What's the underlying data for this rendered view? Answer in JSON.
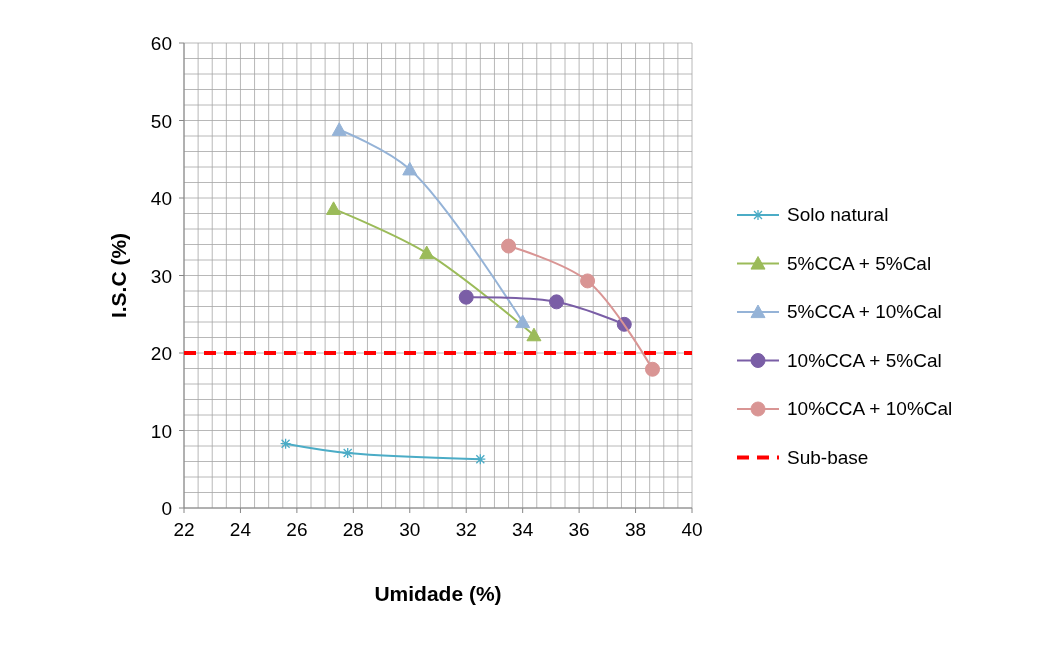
{
  "chart_data": {
    "type": "line",
    "xlabel": "Umidade (%)",
    "ylabel": "I.S.C (%)",
    "xlim": [
      22,
      40
    ],
    "ylim": [
      0,
      60
    ],
    "xticks": [
      22,
      {
        "value": 22.5,
        "label": null
      },
      {
        "value": 23,
        "label": null
      },
      {
        "value": 23.5,
        "label": null
      },
      24,
      {
        "value": 24.5,
        "label": null
      },
      {
        "value": 25,
        "label": null
      },
      {
        "value": 25.5,
        "label": null
      },
      26,
      {
        "value": 26.5,
        "label": null
      },
      {
        "value": 27,
        "label": null
      },
      {
        "value": 27.5,
        "label": null
      },
      28,
      {
        "value": 28.5,
        "label": null
      },
      {
        "value": 29,
        "label": null
      },
      {
        "value": 29.5,
        "label": null
      },
      30,
      {
        "value": 30.5,
        "label": null
      },
      {
        "value": 31,
        "label": null
      },
      {
        "value": 31.5,
        "label": null
      },
      32,
      {
        "value": 32.5,
        "label": null
      },
      {
        "value": 33,
        "label": null
      },
      {
        "value": 33.5,
        "label": null
      },
      34,
      {
        "value": 34.5,
        "label": null
      },
      {
        "value": 35,
        "label": null
      },
      {
        "value": 35.5,
        "label": null
      },
      36,
      {
        "value": 36.5,
        "label": null
      },
      {
        "value": 37,
        "label": null
      },
      {
        "value": 37.5,
        "label": null
      },
      38,
      {
        "value": 38.5,
        "label": null
      },
      {
        "value": 39,
        "label": null
      },
      {
        "value": 39.5,
        "label": null
      },
      40
    ],
    "yticks": [
      0,
      {
        "value": 2,
        "label": null
      },
      {
        "value": 4,
        "label": null
      },
      {
        "value": 6,
        "label": null
      },
      {
        "value": 8,
        "label": null
      },
      10,
      {
        "value": 12,
        "label": null
      },
      {
        "value": 14,
        "label": null
      },
      {
        "value": 16,
        "label": null
      },
      {
        "value": 18,
        "label": null
      },
      20,
      {
        "value": 22,
        "label": null
      },
      {
        "value": 24,
        "label": null
      },
      {
        "value": 26,
        "label": null
      },
      {
        "value": 28,
        "label": null
      },
      30,
      {
        "value": 32,
        "label": null
      },
      {
        "value": 34,
        "label": null
      },
      {
        "value": 36,
        "label": null
      },
      {
        "value": 38,
        "label": null
      },
      40,
      {
        "value": 42,
        "label": null
      },
      {
        "value": 44,
        "label": null
      },
      {
        "value": 46,
        "label": null
      },
      {
        "value": 48,
        "label": null
      },
      50,
      {
        "value": 52,
        "label": null
      },
      {
        "value": 54,
        "label": null
      },
      {
        "value": 56,
        "label": null
      },
      {
        "value": 58,
        "label": null
      },
      60
    ],
    "grid": true,
    "legend": "right",
    "series": [
      {
        "name": "Solo natural",
        "color": "#4bacc6",
        "marker": "cross",
        "x": [
          25.6,
          27.8,
          32.5
        ],
        "values": [
          8.3,
          7.1,
          6.3
        ]
      },
      {
        "name": "5%CCA + 5%Cal",
        "color": "#9bbb59",
        "marker": "triangle",
        "x": [
          27.3,
          30.6,
          34.4
        ],
        "values": [
          38.6,
          32.9,
          22.3
        ]
      },
      {
        "name": "5%CCA + 10%Cal",
        "color": "#95b3d7",
        "marker": "triangle",
        "x": [
          27.5,
          30,
          34
        ],
        "values": [
          48.8,
          43.7,
          24
        ]
      },
      {
        "name": "10%CCA + 5%Cal",
        "color": "#7a5ea6",
        "marker": "circle",
        "x": [
          32,
          35.2,
          37.6
        ],
        "values": [
          27.2,
          26.6,
          23.7
        ]
      },
      {
        "name": "10%CCA + 10%Cal",
        "color": "#d99594",
        "marker": "circle",
        "x": [
          33.5,
          36.3,
          38.6
        ],
        "values": [
          33.8,
          29.3,
          17.9
        ]
      }
    ],
    "ref_lines": [
      {
        "axis": "y",
        "value": 20,
        "label": "Sub-base",
        "color": "#ff0000",
        "line_style": "dashed"
      }
    ]
  }
}
